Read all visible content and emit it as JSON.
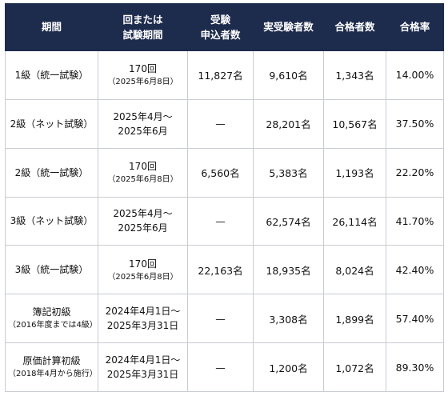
{
  "header": {
    "period": "期間",
    "session_line1": "回または",
    "session_line2": "試験期間",
    "applicants_line1": "受験",
    "applicants_line2": "申込者数",
    "takers": "実受験者数",
    "passers": "合格者数",
    "rate": "合格率"
  },
  "rows": [
    {
      "period_main": "1級（統一試験）",
      "period_sub": "",
      "session_line1": "170回",
      "session_line2": "（2025年6月8日）",
      "applicants": "11,827名",
      "takers": "9,610名",
      "passers": "1,343名",
      "rate": "14.00%"
    },
    {
      "period_main": "2級（ネット試験）",
      "period_sub": "",
      "session_line1": "2025年4月～",
      "session_line2": "2025年6月",
      "applicants": "—",
      "takers": "28,201名",
      "passers": "10,567名",
      "rate": "37.50%"
    },
    {
      "period_main": "2級（統一試験）",
      "period_sub": "",
      "session_line1": "170回",
      "session_line2": "（2025年6月8日）",
      "applicants": "6,560名",
      "takers": "5,383名",
      "passers": "1,193名",
      "rate": "22.20%"
    },
    {
      "period_main": "3級（ネット試験）",
      "period_sub": "",
      "session_line1": "2025年4月～",
      "session_line2": "2025年6月",
      "applicants": "—",
      "takers": "62,574名",
      "passers": "26,114名",
      "rate": "41.70%"
    },
    {
      "period_main": "3級（統一試験）",
      "period_sub": "",
      "session_line1": "170回",
      "session_line2": "（2025年6月8日）",
      "applicants": "22,163名",
      "takers": "18,935名",
      "passers": "8,024名",
      "rate": "42.40%"
    },
    {
      "period_main": "簿記初級",
      "period_sub": "（2016年度までは4級）",
      "session_line1": "2024年4月1日～",
      "session_line2": "2025年3月31日",
      "applicants": "—",
      "takers": "3,308名",
      "passers": "1,899名",
      "rate": "57.40%"
    },
    {
      "period_main": "原価計算初級",
      "period_sub": "（2018年4月から施行）",
      "session_line1": "2024年4月1日～",
      "session_line2": "2025年3月31日",
      "applicants": "—",
      "takers": "1,200名",
      "passers": "1,072名",
      "rate": "89.30%"
    }
  ]
}
